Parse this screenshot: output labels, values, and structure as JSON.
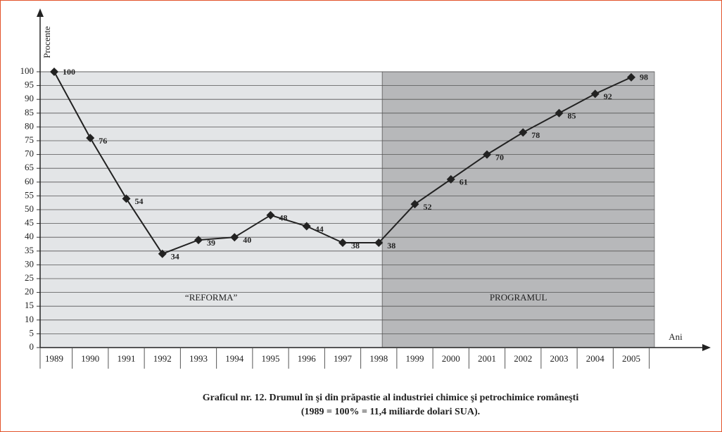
{
  "chart_data": {
    "type": "line",
    "y_label": "Procente",
    "x_label": "Ani",
    "caption": [
      "Graficul nr. 12. Drumul în şi din prăpastie al industriei chimice şi  petrochimice româneşti",
      "(1989 = 100% = 11,4 miliarde dolari SUA)."
    ],
    "categories": [
      "1989",
      "1990",
      "1991",
      "1992",
      "1993",
      "1994",
      "1995",
      "1996",
      "1997",
      "1998",
      "1999",
      "2000",
      "2001",
      "2002",
      "2003",
      "2004",
      "2005"
    ],
    "series": [
      {
        "name": "Procente",
        "color": "#222222",
        "values": [
          100,
          76,
          54,
          34,
          39,
          40,
          48,
          44,
          38,
          38,
          52,
          61,
          70,
          78,
          85,
          92,
          98
        ]
      }
    ],
    "regions": [
      {
        "label": "“REFORMA”",
        "from": "1989",
        "to": "1998",
        "color": "#e3e5e7"
      },
      {
        "label": "PROGRAMUL",
        "from": "1998",
        "to": "2005",
        "color": "#b7b8ba"
      }
    ],
    "ylim": [
      0,
      100
    ],
    "yticks": [
      0,
      5,
      10,
      15,
      20,
      25,
      30,
      35,
      40,
      45,
      50,
      55,
      60,
      65,
      70,
      75,
      80,
      85,
      90,
      95,
      100
    ],
    "grid": true
  }
}
